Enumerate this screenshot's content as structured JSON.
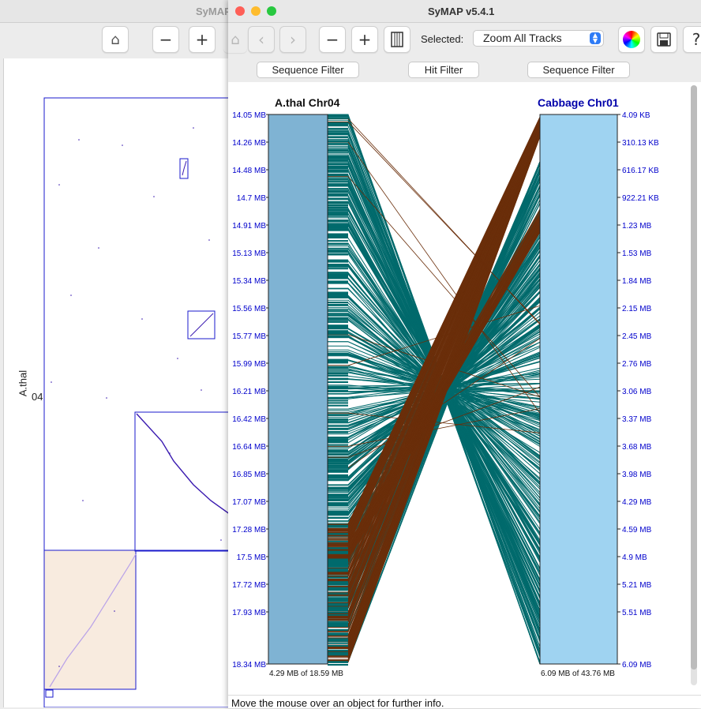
{
  "back_window": {
    "title": "SyMAP",
    "axis_label": "A.thal",
    "chr_label": "04",
    "toolbar_icons": [
      "home-icon",
      "minus-icon",
      "plus-icon"
    ]
  },
  "front_window": {
    "title": "SyMAP v5.4.1",
    "toolbar": {
      "selected_label": "Selected:",
      "zoom_value": "Zoom All Tracks"
    },
    "filters": {
      "left": "Sequence Filter",
      "hit": "Hit Filter",
      "right": "Sequence Filter"
    },
    "left_track": {
      "name": "A.thal Chr04",
      "ticks": [
        "14.05 MB",
        "14.26 MB",
        "14.48 MB",
        "14.7 MB",
        "14.91 MB",
        "15.13 MB",
        "15.34 MB",
        "15.56 MB",
        "15.77 MB",
        "15.99 MB",
        "16.21 MB",
        "16.42 MB",
        "16.64 MB",
        "16.85 MB",
        "17.07 MB",
        "17.28 MB",
        "17.5 MB",
        "17.72 MB",
        "17.93 MB",
        "18.34 MB"
      ],
      "summary": "4.29 MB of 18.59 MB"
    },
    "right_track": {
      "name": "Cabbage Chr01",
      "ticks": [
        "4.09 KB",
        "310.13 KB",
        "616.17 KB",
        "922.21 KB",
        "1.23 MB",
        "1.53 MB",
        "1.84 MB",
        "2.15 MB",
        "2.45 MB",
        "2.76 MB",
        "3.06 MB",
        "3.37 MB",
        "3.68 MB",
        "3.98 MB",
        "4.29 MB",
        "4.59 MB",
        "4.9 MB",
        "5.21 MB",
        "5.51 MB",
        "6.09 MB"
      ],
      "summary": "6.09 MB of 43.76 MB"
    },
    "status": "Move the mouse over an object for further info.",
    "colors": {
      "left_track": "#7fb3d3",
      "right_track": "#9fd3f1",
      "hit_forward": "#006a6c",
      "hit_inverted": "#6a2e0a",
      "tick_text": "#0000cc",
      "right_title": "#0000aa"
    }
  }
}
